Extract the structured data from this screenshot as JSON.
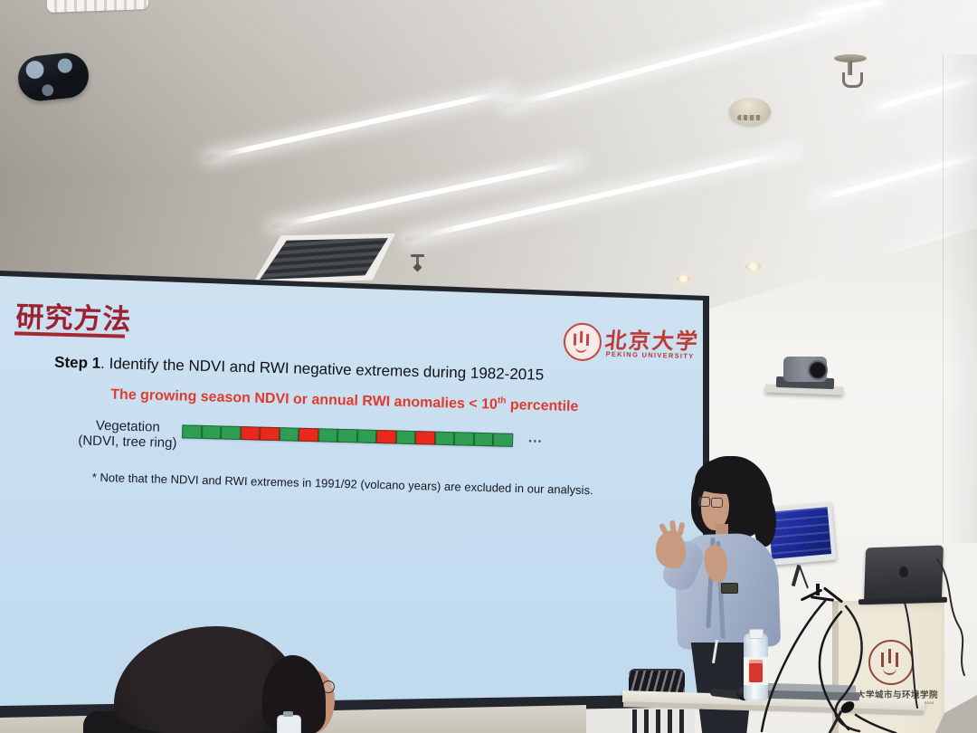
{
  "slide": {
    "title": "研究方法",
    "step": {
      "bold": "Step 1",
      "rest": ". Identify the NDVI and RWI negative extremes during 1982-2015"
    },
    "criterion": {
      "pre": "The growing season NDVI or annual RWI anomalies < 10",
      "sup": "th",
      "post": " percentile"
    },
    "row_label_line1": "Vegetation",
    "row_label_line2": "(NDVI, tree ring)",
    "ellipsis": "...",
    "note": "* Note that the NDVI and RWI extremes in 1991/92 (volcano years) are excluded in our analysis.",
    "sequence": {
      "cells": [
        "G",
        "G",
        "G",
        "R",
        "R",
        "G",
        "R",
        "G",
        "G",
        "G",
        "R",
        "G",
        "R",
        "G",
        "G",
        "G",
        "G"
      ]
    },
    "colors": {
      "title_red": "#9c2230",
      "criterion_red": "#e03b2e",
      "cell_green": "#2f9e52",
      "cell_red": "#e8291c"
    }
  },
  "slide_logo": {
    "name_cn": "北京大学",
    "name_en": "PEKING UNIVERSITY"
  },
  "podium_sign": {
    "college_cn": "北京大学城市与环境学院",
    "college_en": "College of Urban and Environmental Sciences"
  }
}
